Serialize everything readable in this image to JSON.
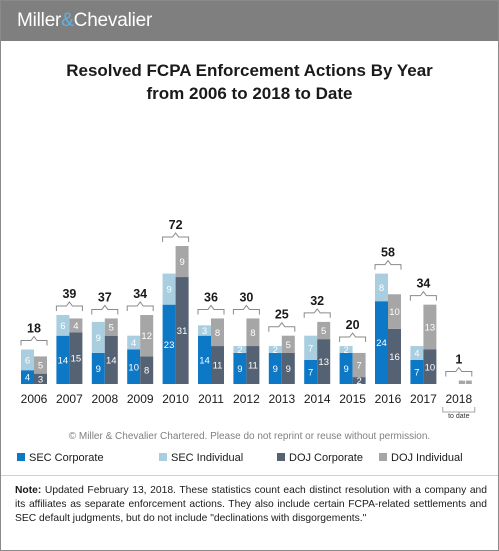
{
  "brand": {
    "name_left": "Miller",
    "amp": "&",
    "name_right": "Chevalier"
  },
  "title_line1": "Resolved FCPA Enforcement Actions By Year",
  "title_line2": "from 2006 to 2018 to Date",
  "copyright": "© Miller & Chevalier Chartered. Please do not reprint or reuse without permission.",
  "note_label": "Note:",
  "note_text": " Updated February 13, 2018. These statistics count each distinct resolution with a company and its affiliates as separate enforcement actions. They also include certain FCPA-related settlements and SEC default judgments, but do not include \"declinations with disgorgements.\"",
  "to_date_label": "to date",
  "colors": {
    "SEC Corporate": "#0d78c6",
    "SEC Individual": "#a9cee0",
    "DOJ Corporate": "#556273",
    "DOJ Individual": "#a6a6a6"
  },
  "chart_data": {
    "type": "bar",
    "stacked_pairs": true,
    "title": "Resolved FCPA Enforcement Actions By Year from 2006 to 2018 to Date",
    "categories": [
      "2006",
      "2007",
      "2008",
      "2009",
      "2010",
      "2011",
      "2012",
      "2013",
      "2014",
      "2015",
      "2016",
      "2017",
      "2018"
    ],
    "series": [
      {
        "name": "SEC Corporate",
        "stack": "SEC",
        "values": [
          4,
          14,
          9,
          10,
          23,
          14,
          9,
          9,
          7,
          9,
          24,
          7,
          0
        ]
      },
      {
        "name": "SEC Individual",
        "stack": "SEC",
        "values": [
          6,
          6,
          9,
          4,
          9,
          3,
          2,
          2,
          7,
          2,
          8,
          4,
          0
        ]
      },
      {
        "name": "DOJ Corporate",
        "stack": "DOJ",
        "values": [
          3,
          15,
          14,
          8,
          31,
          11,
          11,
          9,
          13,
          2,
          16,
          10,
          0
        ]
      },
      {
        "name": "DOJ Individual",
        "stack": "DOJ",
        "values": [
          5,
          4,
          5,
          12,
          9,
          8,
          8,
          5,
          5,
          7,
          10,
          13,
          1
        ]
      }
    ],
    "totals": [
      18,
      39,
      37,
      34,
      72,
      36,
      30,
      25,
      32,
      20,
      58,
      34,
      1
    ],
    "ylim": [
      0,
      60
    ],
    "grid": false,
    "legend_position": "bottom"
  }
}
